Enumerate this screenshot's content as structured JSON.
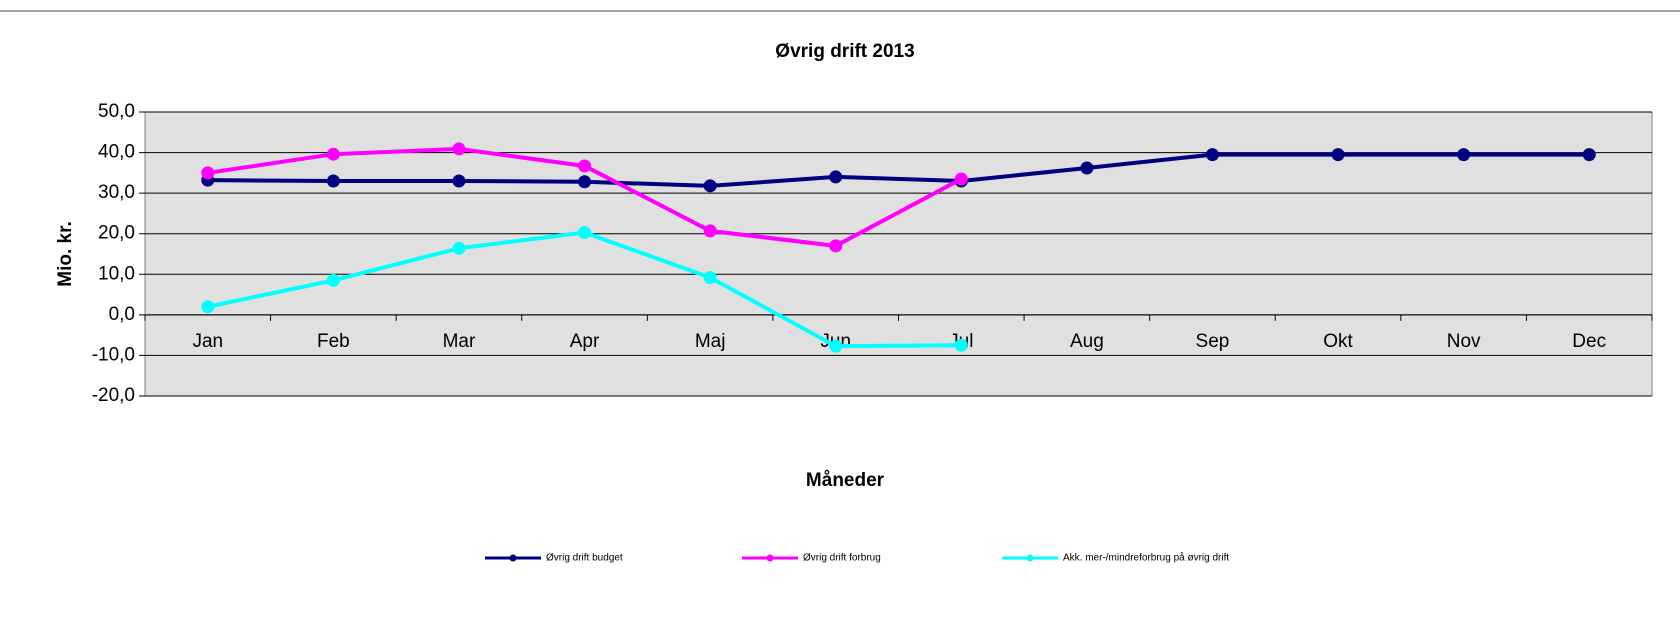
{
  "chart_data": {
    "type": "line",
    "title": "Øvrig drift 2013",
    "x_label": "Måneder",
    "y_label": "Mio. kr.",
    "categories": [
      "Jan",
      "Feb",
      "Mar",
      "Apr",
      "Maj",
      "Jun",
      "Jul",
      "Aug",
      "Sep",
      "Okt",
      "Nov",
      "Dec"
    ],
    "series": [
      {
        "name": "Øvrig drift budget",
        "color": "#000080",
        "values": [
          33.2,
          33.0,
          33.0,
          32.8,
          31.8,
          34.0,
          33.0,
          36.2,
          39.5,
          39.5,
          39.5,
          39.5
        ]
      },
      {
        "name": "Øvrig drift forbrug",
        "color": "#ff00ff",
        "values": [
          35.0,
          39.6,
          40.9,
          36.7,
          20.7,
          17.0,
          33.5,
          null,
          null,
          null,
          null,
          null
        ]
      },
      {
        "name": "Akk. mer-/mindreforbrug  på øvrig drift",
        "color": "#00ffff",
        "values": [
          2.0,
          8.5,
          16.4,
          20.3,
          9.2,
          -7.7,
          -7.5,
          null,
          null,
          null,
          null,
          null
        ]
      }
    ],
    "ylim": [
      -20,
      50
    ],
    "yticks": [
      {
        "value": -20,
        "label": "-20,0"
      },
      {
        "value": -10,
        "label": "-10,0"
      },
      {
        "value": 0,
        "label": "0,0"
      },
      {
        "value": 10,
        "label": "10,0"
      },
      {
        "value": 20,
        "label": "20,0"
      },
      {
        "value": 30,
        "label": "30,0"
      },
      {
        "value": 40,
        "label": "40,0"
      },
      {
        "value": 50,
        "label": "50,0"
      }
    ],
    "grid": true,
    "legend": "bottom"
  }
}
